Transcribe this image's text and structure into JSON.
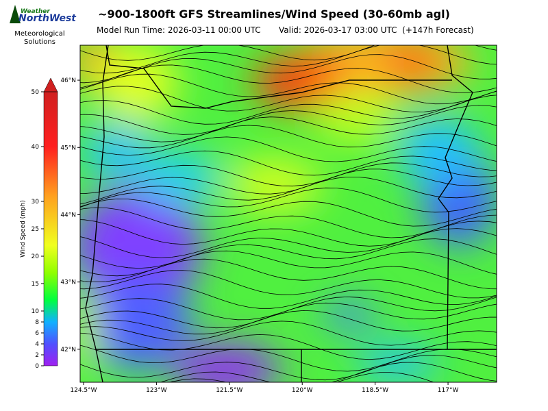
{
  "logo": {
    "brand_top": "Weather",
    "brand_main": "NorthWest",
    "tagline": "Meteorological Solutions"
  },
  "header": {
    "title": "~900-1800ft GFS Streamlines/Wind Speed (30-60mb agl)",
    "model_run": "Model Run Time: 2026-03-11 00:00 UTC",
    "valid": "Valid: 2026-03-17 03:00 UTC  (+147h Forecast)"
  },
  "map": {
    "xlim": [
      -124.57,
      -116.0
    ],
    "ylim": [
      41.51,
      46.52
    ],
    "xticks": [
      {
        "value": -124.5,
        "label": "124.5°W"
      },
      {
        "value": -123,
        "label": "123°W"
      },
      {
        "value": -121.5,
        "label": "121.5°W"
      },
      {
        "value": -120,
        "label": "120°W"
      },
      {
        "value": -118.5,
        "label": "118.5°W"
      },
      {
        "value": -117,
        "label": "117°W"
      }
    ],
    "yticks": [
      {
        "value": 46,
        "label": "46°N"
      },
      {
        "value": 45,
        "label": "45°N"
      },
      {
        "value": 44,
        "label": "44°N"
      },
      {
        "value": 43,
        "label": "43°N"
      },
      {
        "value": 42,
        "label": "42°N"
      }
    ]
  },
  "colorbar": {
    "label": "Wind Speed (mph)",
    "lim": [
      0,
      50
    ],
    "ticks": [
      0,
      2,
      4,
      6,
      8,
      10,
      15,
      20,
      25,
      30,
      40,
      50
    ]
  }
}
